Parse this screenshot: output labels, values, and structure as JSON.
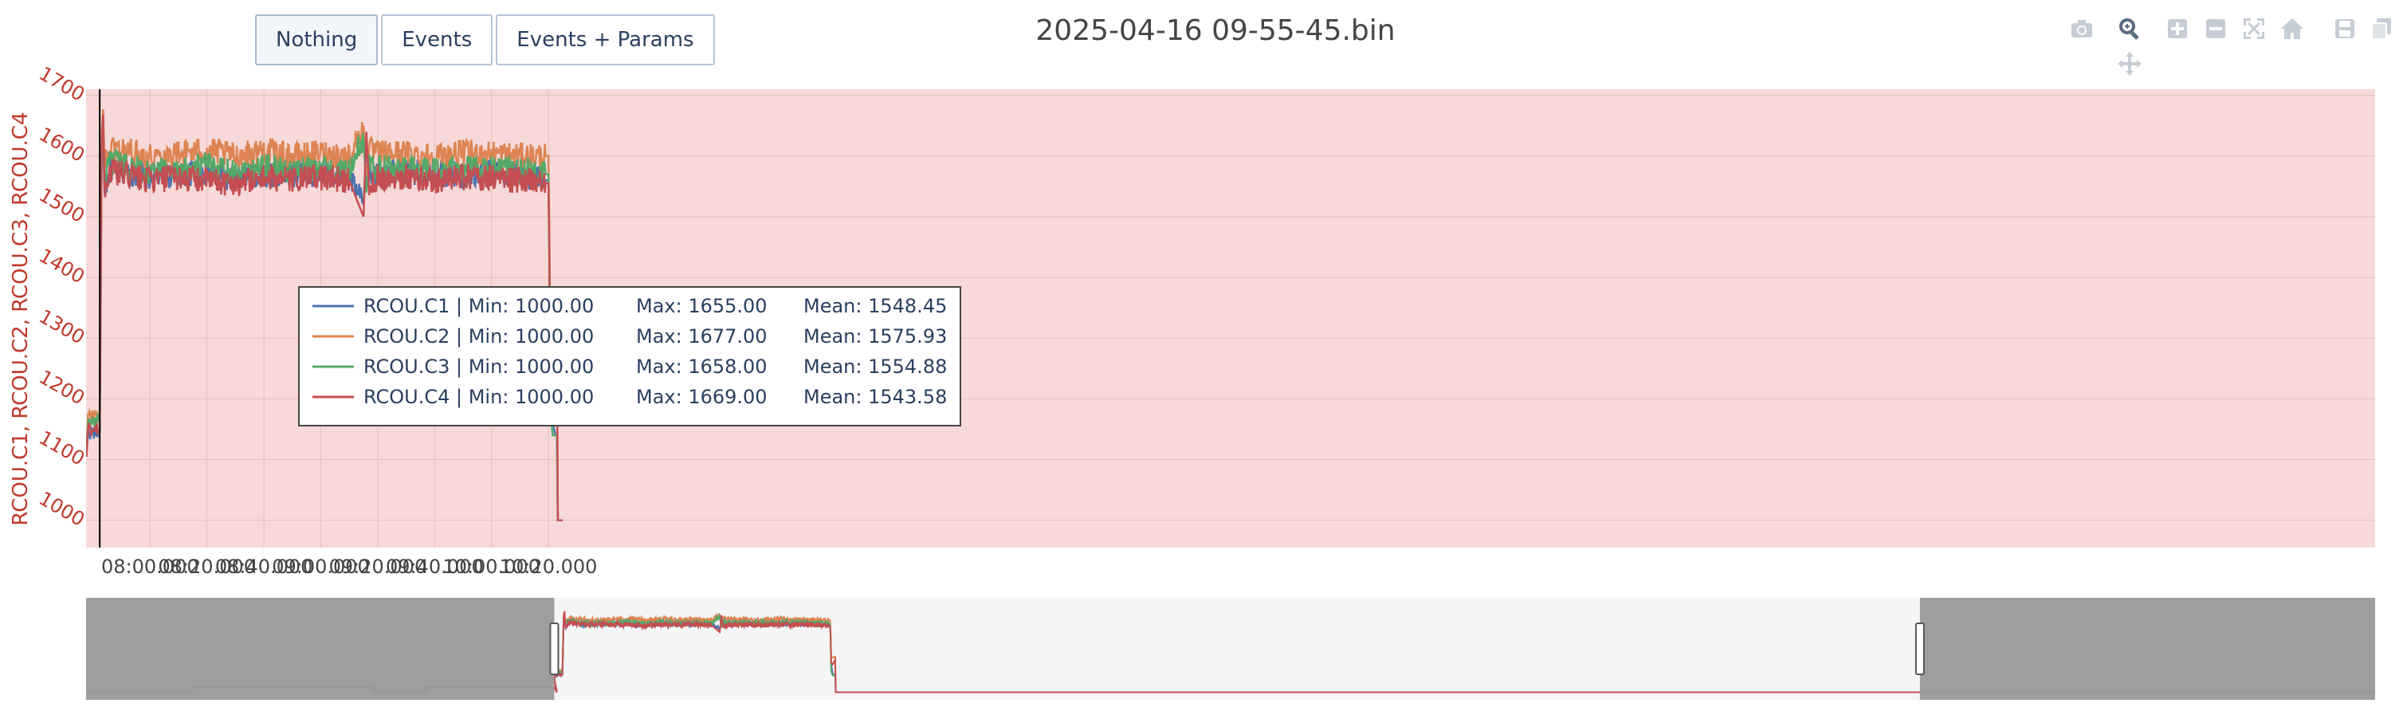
{
  "buttons": [
    {
      "label": "Nothing",
      "active": true
    },
    {
      "label": "Events",
      "active": false
    },
    {
      "label": "Events + Params",
      "active": false
    }
  ],
  "title": "2025-04-16 09-55-45.bin",
  "modebar": [
    "camera-icon",
    "zoom-icon",
    "zoom-in-icon",
    "zoom-out-icon",
    "autoscale-icon",
    "home-icon",
    "save-icon",
    "copy-icon",
    "pan-icon"
  ],
  "chart_data": {
    "type": "line",
    "title": "2025-04-16 09-55-45.bin",
    "ylabel": "RCOU.C1, RCOU.C2, RCOU.C3, RCOU.C4",
    "xlabel": "",
    "ylim": [
      955,
      1710
    ],
    "xlim_seconds": [
      457.5,
      1262
    ],
    "x_ticks": [
      "08:00.000",
      "08:20.000",
      "08:40.000",
      "09:00.000",
      "09:20.000",
      "09:40.000",
      "10:00.000",
      "10:20.000"
    ],
    "x_tick_values_seconds": [
      480,
      500,
      520,
      540,
      560,
      580,
      600,
      620
    ],
    "y_ticks": [
      1000,
      1100,
      1200,
      1300,
      1400,
      1500,
      1600,
      1700
    ],
    "plot_background": "#f6d9d8",
    "cursor_x_seconds": 462.3,
    "series": [
      {
        "name": "RCOU.C1",
        "color": "#4c72b0",
        "min_label": "RCOU.C1 | Min: 1000.00",
        "max_label": "Max: 1655.00",
        "mean_label": "Mean: 1548.45",
        "points": [
          [
            457.6,
            1105
          ],
          [
            458.2,
            1145
          ],
          [
            461,
            1145
          ],
          [
            462.3,
            1145
          ],
          [
            463,
            1600
          ],
          [
            463.5,
            1640
          ],
          [
            464,
            1540
          ],
          [
            466,
            1580
          ],
          [
            480,
            1565
          ],
          [
            490,
            1570
          ],
          [
            500,
            1575
          ],
          [
            510,
            1560
          ],
          [
            520,
            1570
          ],
          [
            530,
            1568
          ],
          [
            540,
            1572
          ],
          [
            550,
            1565
          ],
          [
            555,
            1520
          ],
          [
            556,
            1620
          ],
          [
            557,
            1560
          ],
          [
            560,
            1570
          ],
          [
            570,
            1575
          ],
          [
            580,
            1570
          ],
          [
            590,
            1568
          ],
          [
            600,
            1575
          ],
          [
            610,
            1570
          ],
          [
            619,
            1560
          ],
          [
            620,
            1560
          ],
          [
            620.3,
            1450
          ],
          [
            620.6,
            1230
          ],
          [
            621.5,
            1160
          ],
          [
            622.5,
            1140
          ],
          [
            623,
            1140
          ],
          [
            623.3,
            1000
          ],
          [
            625,
            1000
          ]
        ]
      },
      {
        "name": "RCOU.C2",
        "color": "#dd8452",
        "min_label": "RCOU.C2 | Min: 1000.00",
        "max_label": "Max: 1677.00",
        "mean_label": "Mean: 1575.93",
        "points": [
          [
            457.6,
            1110
          ],
          [
            458.2,
            1170
          ],
          [
            461,
            1175
          ],
          [
            462.3,
            1175
          ],
          [
            463,
            1640
          ],
          [
            463.5,
            1677
          ],
          [
            464,
            1580
          ],
          [
            466,
            1615
          ],
          [
            480,
            1600
          ],
          [
            490,
            1605
          ],
          [
            500,
            1610
          ],
          [
            510,
            1600
          ],
          [
            520,
            1610
          ],
          [
            530,
            1600
          ],
          [
            540,
            1605
          ],
          [
            550,
            1600
          ],
          [
            555,
            1650
          ],
          [
            556,
            1560
          ],
          [
            557,
            1610
          ],
          [
            560,
            1605
          ],
          [
            570,
            1605
          ],
          [
            580,
            1600
          ],
          [
            590,
            1605
          ],
          [
            600,
            1605
          ],
          [
            610,
            1600
          ],
          [
            619,
            1600
          ],
          [
            620,
            1600
          ],
          [
            620.3,
            1480
          ],
          [
            620.6,
            1280
          ],
          [
            621.5,
            1290
          ],
          [
            622.5,
            1295
          ],
          [
            623,
            1295
          ],
          [
            623.3,
            1000
          ],
          [
            625,
            1000
          ]
        ]
      },
      {
        "name": "RCOU.C3",
        "color": "#55a868",
        "min_label": "RCOU.C3 | Min: 1000.00",
        "max_label": "Max: 1658.00",
        "mean_label": "Mean: 1554.88",
        "points": [
          [
            457.6,
            1105
          ],
          [
            458.2,
            1160
          ],
          [
            461,
            1165
          ],
          [
            462.3,
            1165
          ],
          [
            463,
            1610
          ],
          [
            463.5,
            1645
          ],
          [
            464,
            1560
          ],
          [
            466,
            1590
          ],
          [
            480,
            1575
          ],
          [
            490,
            1580
          ],
          [
            500,
            1585
          ],
          [
            510,
            1575
          ],
          [
            520,
            1585
          ],
          [
            530,
            1575
          ],
          [
            540,
            1580
          ],
          [
            550,
            1575
          ],
          [
            555,
            1630
          ],
          [
            556,
            1540
          ],
          [
            557,
            1585
          ],
          [
            560,
            1580
          ],
          [
            570,
            1580
          ],
          [
            580,
            1575
          ],
          [
            590,
            1580
          ],
          [
            600,
            1580
          ],
          [
            610,
            1575
          ],
          [
            619,
            1570
          ],
          [
            620,
            1570
          ],
          [
            620.3,
            1430
          ],
          [
            620.6,
            1180
          ],
          [
            621.5,
            1140
          ],
          [
            622.5,
            1140
          ],
          [
            623,
            1140
          ],
          [
            623.3,
            1000
          ],
          [
            625,
            1000
          ]
        ]
      },
      {
        "name": "RCOU.C4",
        "color": "#c44e52",
        "min_label": "RCOU.C4 | Min: 1000.00",
        "max_label": "Max: 1669.00",
        "mean_label": "Mean: 1543.58",
        "points": [
          [
            457.6,
            1105
          ],
          [
            458.2,
            1150
          ],
          [
            461,
            1150
          ],
          [
            462.3,
            1150
          ],
          [
            463,
            1620
          ],
          [
            463.5,
            1669
          ],
          [
            464,
            1550
          ],
          [
            466,
            1575
          ],
          [
            480,
            1560
          ],
          [
            490,
            1565
          ],
          [
            500,
            1560
          ],
          [
            510,
            1555
          ],
          [
            520,
            1565
          ],
          [
            530,
            1560
          ],
          [
            540,
            1565
          ],
          [
            550,
            1560
          ],
          [
            555,
            1500
          ],
          [
            556,
            1640
          ],
          [
            557,
            1550
          ],
          [
            560,
            1565
          ],
          [
            570,
            1565
          ],
          [
            580,
            1560
          ],
          [
            590,
            1565
          ],
          [
            600,
            1565
          ],
          [
            610,
            1560
          ],
          [
            619,
            1555
          ],
          [
            620,
            1555
          ],
          [
            620.3,
            1460
          ],
          [
            620.6,
            1250
          ],
          [
            621.5,
            1230
          ],
          [
            622.5,
            1260
          ],
          [
            623,
            1270
          ],
          [
            623.3,
            1000
          ],
          [
            625,
            1000
          ]
        ]
      }
    ],
    "rangeslider": {
      "range_seconds": [
        0,
        880
      ],
      "selected_seconds": [
        457.5,
        1262
      ]
    }
  }
}
